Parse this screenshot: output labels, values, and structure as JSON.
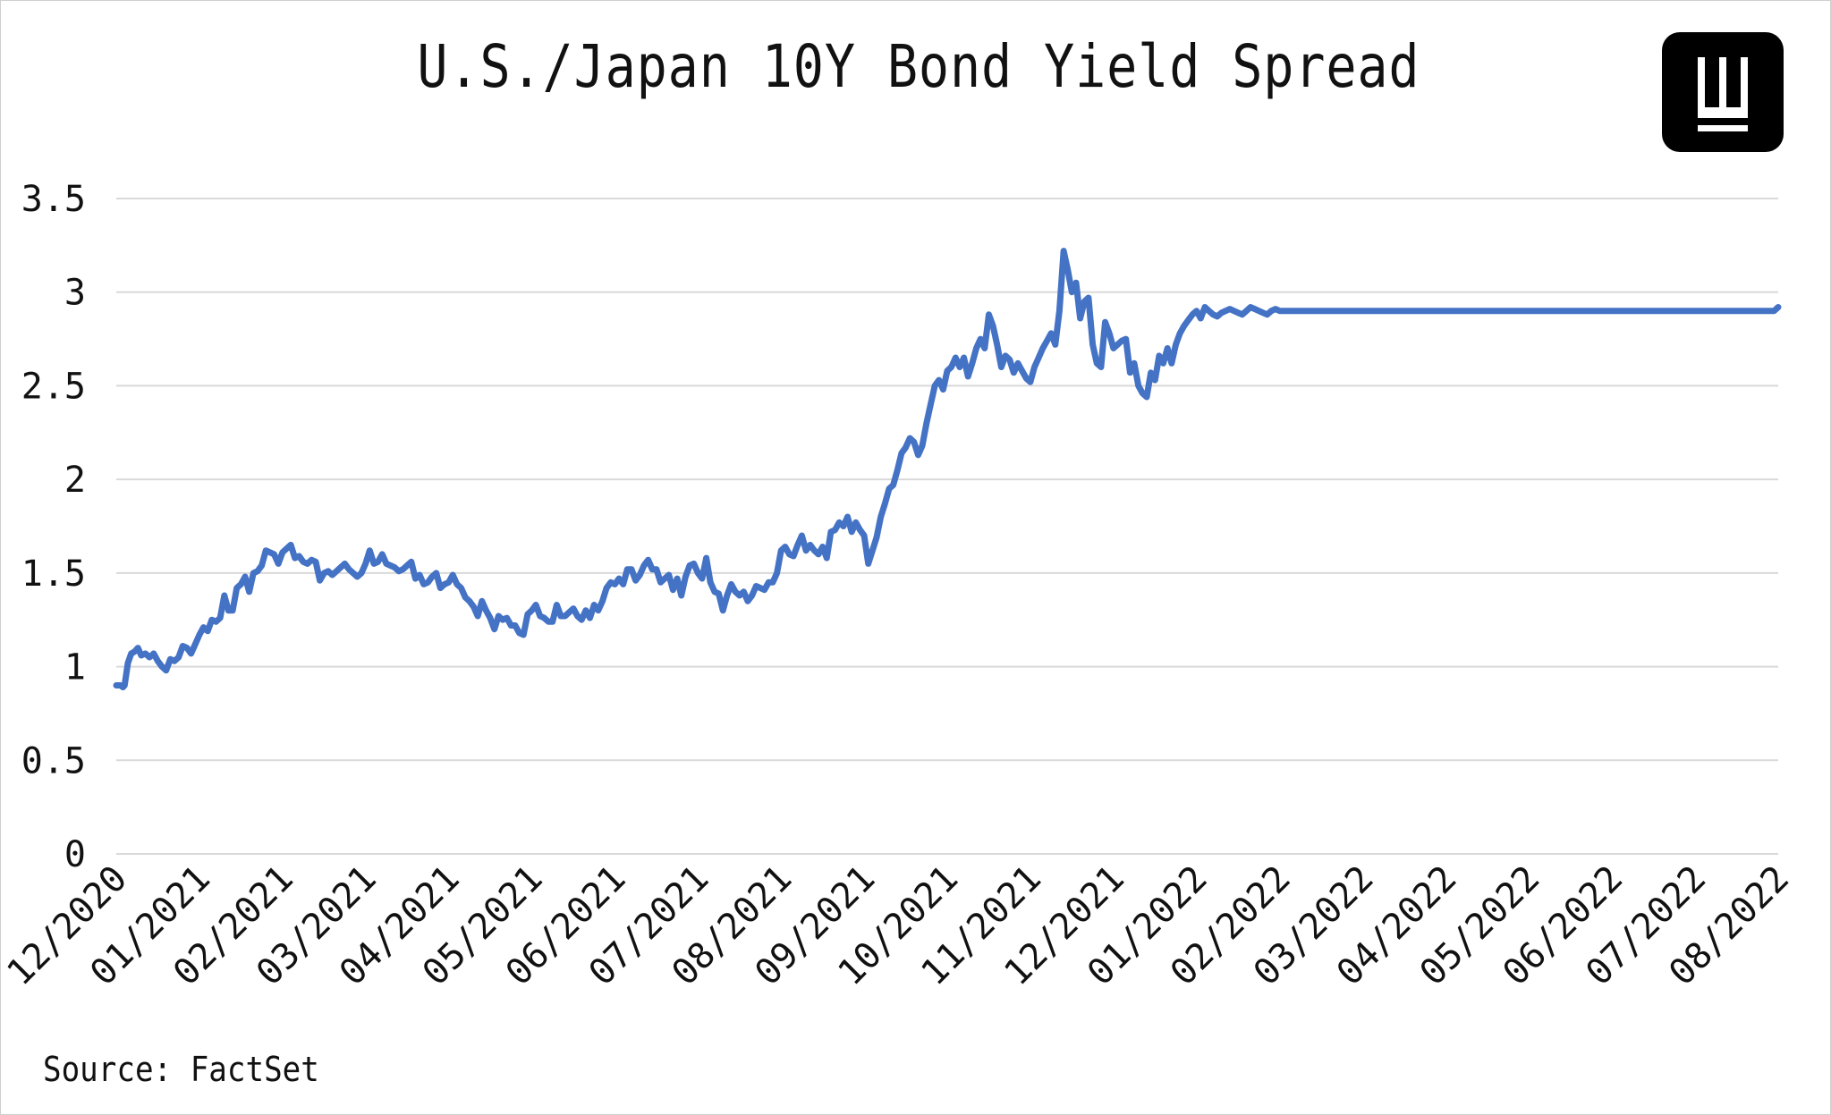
{
  "title": "U.S./Japan 10Y Bond Yield Spread",
  "source": "Source: FactSet",
  "logo": {
    "icon": "w-logo-icon",
    "letter": "W"
  },
  "chart_data": {
    "type": "line",
    "title": "U.S./Japan 10Y Bond Yield Spread",
    "xlabel": "",
    "ylabel": "",
    "ylim": [
      0,
      3.5
    ],
    "yticks": [
      "0",
      "0.5",
      "1",
      "1.5",
      "2",
      "2.5",
      "3",
      "3.5"
    ],
    "ytick_values": [
      0,
      0.5,
      1,
      1.5,
      2,
      2.5,
      3,
      3.5
    ],
    "xticks": [
      "12/2020",
      "01/2021",
      "02/2021",
      "03/2021",
      "04/2021",
      "05/2021",
      "06/2021",
      "07/2021",
      "08/2021",
      "09/2021",
      "10/2021",
      "11/2021",
      "12/2021",
      "01/2022",
      "02/2022",
      "03/2022",
      "04/2022",
      "05/2022",
      "06/2022",
      "07/2022",
      "08/2022"
    ],
    "grid": true,
    "line_color": "#4472C4",
    "series": [
      {
        "x": [
          0,
          0.05,
          0.08,
          0.1,
          0.14,
          0.18,
          0.22,
          0.26,
          0.3,
          0.35,
          0.4,
          0.45,
          0.5,
          0.55,
          0.6,
          0.65,
          0.7,
          0.75,
          0.8,
          0.85,
          0.9,
          0.95,
          1.0,
          1.05,
          1.1,
          1.15,
          1.2,
          1.25,
          1.3,
          1.35,
          1.4,
          1.45,
          1.5,
          1.55,
          1.6,
          1.65,
          1.7,
          1.75,
          1.8,
          1.85,
          1.9,
          1.95,
          2.0,
          2.05,
          2.1,
          2.15,
          2.2,
          2.25,
          2.3,
          2.35,
          2.4,
          2.45,
          2.5,
          2.55,
          2.6,
          2.65,
          2.7,
          2.75,
          2.8,
          2.85,
          2.9,
          2.95,
          3.0,
          3.05,
          3.1,
          3.15,
          3.2,
          3.25,
          3.3,
          3.35,
          3.4,
          3.45,
          3.5,
          3.55,
          3.6,
          3.65,
          3.7,
          3.75,
          3.8,
          3.85,
          3.9,
          3.95,
          4.0,
          4.05,
          4.1,
          4.15,
          4.2,
          4.25,
          4.3,
          4.35,
          4.4,
          4.45,
          4.5,
          4.55,
          4.6,
          4.65,
          4.7,
          4.75,
          4.8,
          4.85,
          4.9,
          4.95,
          5.0,
          5.05,
          5.1,
          5.15,
          5.2,
          5.25,
          5.3,
          5.35,
          5.4,
          5.45,
          5.5,
          5.55,
          5.6,
          5.65,
          5.7,
          5.75,
          5.8,
          5.85,
          5.9,
          5.95,
          6.0,
          6.05,
          6.1,
          6.15,
          6.2,
          6.25,
          6.3,
          6.35,
          6.4,
          6.45,
          6.5,
          6.55,
          6.6,
          6.65,
          6.7,
          6.75,
          6.8,
          6.85,
          6.9,
          6.95,
          7.0,
          7.05,
          7.1,
          7.15,
          7.2,
          7.25,
          7.3,
          7.35,
          7.4,
          7.45,
          7.5,
          7.55,
          7.6,
          7.65,
          7.7,
          7.75,
          7.8,
          7.85,
          7.9,
          7.95,
          8.0,
          8.05,
          8.1,
          8.15,
          8.2,
          8.25,
          8.3,
          8.35,
          8.4,
          8.45,
          8.5,
          8.55,
          8.6,
          8.65,
          8.7,
          8.75,
          8.8,
          8.85,
          8.9,
          8.95,
          9.0,
          9.05,
          9.1,
          9.15,
          9.2,
          9.25,
          9.3,
          9.35,
          9.4,
          9.45,
          9.5,
          9.55,
          9.6,
          9.65,
          9.7,
          9.75,
          9.8,
          9.85,
          9.9,
          9.95,
          10.0,
          10.05,
          10.1,
          10.15,
          10.2,
          10.25,
          10.3,
          10.35,
          10.4,
          10.45,
          10.5,
          10.55,
          10.6,
          10.65,
          10.7,
          10.75,
          10.8,
          10.85,
          10.9,
          10.95,
          11.0,
          11.05,
          11.1,
          11.15,
          11.2,
          11.25,
          11.3,
          11.35,
          11.4,
          11.45,
          11.5,
          11.55,
          11.6,
          11.65,
          11.7,
          11.75,
          11.8,
          11.85,
          11.9,
          11.95,
          12.0,
          12.05,
          12.1,
          12.15,
          12.2,
          12.25,
          12.3,
          12.35,
          12.4,
          12.45,
          12.5,
          12.55,
          12.6,
          12.65,
          12.7,
          12.75,
          12.8,
          12.85,
          12.9,
          12.95,
          13.0,
          13.05,
          13.1,
          13.15,
          13.2,
          13.25,
          13.3,
          13.35,
          13.4,
          13.45,
          13.5,
          13.55,
          13.6,
          13.65,
          13.7,
          13.75,
          13.8,
          13.85,
          13.9,
          13.95,
          14.0,
          14.05,
          14.1,
          14.15,
          14.2,
          14.25,
          14.3,
          14.35,
          14.4,
          14.45,
          14.5,
          14.55,
          14.6,
          14.65,
          14.7,
          14.75,
          14.8,
          14.85,
          14.9,
          14.95,
          15.0,
          15.05,
          15.1,
          15.15,
          15.2,
          15.25,
          15.3,
          15.35,
          15.4,
          15.45,
          15.5,
          15.55,
          15.6,
          15.65,
          15.7,
          15.75,
          15.8,
          15.85,
          15.9,
          15.95,
          16.0,
          16.05,
          16.1,
          16.15,
          16.2,
          16.25,
          16.3,
          16.35,
          16.4,
          16.45,
          16.5,
          16.55,
          16.6,
          16.65,
          16.7,
          16.75,
          16.8,
          16.85,
          16.9,
          16.95,
          17.0,
          17.05,
          17.1,
          17.15,
          17.2,
          17.25,
          17.3,
          17.35,
          17.4,
          17.45,
          17.5,
          17.55,
          17.6,
          17.65,
          17.7,
          17.75,
          17.8,
          17.85,
          17.9,
          17.95,
          18.0,
          18.05,
          18.1,
          18.15,
          18.2,
          18.25,
          18.3,
          18.35,
          18.4,
          18.45,
          18.5,
          18.55,
          18.6,
          18.65,
          18.7,
          18.75,
          18.8,
          18.85,
          18.9,
          18.95,
          19.0,
          19.05,
          19.1,
          19.15,
          19.2,
          19.25,
          19.3,
          19.35,
          19.4,
          19.45,
          19.5,
          19.55,
          19.6,
          19.65,
          19.7,
          19.75,
          19.8,
          19.85,
          19.9,
          19.95,
          20.0
        ],
        "values": [
          0.9,
          0.9,
          0.89,
          0.9,
          1.02,
          1.07,
          1.08,
          1.1,
          1.06,
          1.07,
          1.05,
          1.07,
          1.03,
          1.0,
          0.98,
          1.04,
          1.03,
          1.05,
          1.11,
          1.1,
          1.07,
          1.12,
          1.17,
          1.21,
          1.19,
          1.25,
          1.24,
          1.26,
          1.38,
          1.3,
          1.3,
          1.42,
          1.44,
          1.48,
          1.4,
          1.5,
          1.51,
          1.54,
          1.62,
          1.61,
          1.6,
          1.55,
          1.61,
          1.63,
          1.65,
          1.58,
          1.59,
          1.56,
          1.55,
          1.57,
          1.56,
          1.46,
          1.5,
          1.51,
          1.49,
          1.51,
          1.53,
          1.55,
          1.52,
          1.5,
          1.48,
          1.5,
          1.55,
          1.62,
          1.55,
          1.56,
          1.6,
          1.55,
          1.54,
          1.53,
          1.51,
          1.52,
          1.54,
          1.56,
          1.47,
          1.49,
          1.44,
          1.45,
          1.48,
          1.5,
          1.42,
          1.44,
          1.45,
          1.49,
          1.44,
          1.42,
          1.37,
          1.35,
          1.32,
          1.27,
          1.35,
          1.3,
          1.26,
          1.2,
          1.27,
          1.25,
          1.26,
          1.22,
          1.22,
          1.18,
          1.17,
          1.28,
          1.3,
          1.33,
          1.27,
          1.26,
          1.24,
          1.24,
          1.33,
          1.27,
          1.27,
          1.29,
          1.31,
          1.27,
          1.25,
          1.3,
          1.26,
          1.33,
          1.3,
          1.35,
          1.42,
          1.45,
          1.44,
          1.47,
          1.44,
          1.52,
          1.52,
          1.46,
          1.49,
          1.54,
          1.57,
          1.52,
          1.52,
          1.45,
          1.47,
          1.49,
          1.41,
          1.47,
          1.38,
          1.48,
          1.54,
          1.55,
          1.5,
          1.47,
          1.58,
          1.45,
          1.4,
          1.39,
          1.3,
          1.38,
          1.44,
          1.4,
          1.38,
          1.4,
          1.35,
          1.38,
          1.43,
          1.42,
          1.41,
          1.45,
          1.45,
          1.5,
          1.62,
          1.64,
          1.6,
          1.59,
          1.65,
          1.7,
          1.62,
          1.65,
          1.62,
          1.6,
          1.64,
          1.58,
          1.72,
          1.73,
          1.77,
          1.75,
          1.8,
          1.72,
          1.77,
          1.73,
          1.7,
          1.55,
          1.62,
          1.69,
          1.8,
          1.87,
          1.95,
          1.97,
          2.05,
          2.14,
          2.17,
          2.22,
          2.2,
          2.13,
          2.18,
          2.3,
          2.4,
          2.5,
          2.53,
          2.48,
          2.58,
          2.6,
          2.65,
          2.6,
          2.65,
          2.55,
          2.62,
          2.7,
          2.75,
          2.7,
          2.88,
          2.82,
          2.72,
          2.6,
          2.66,
          2.64,
          2.57,
          2.62,
          2.58,
          2.54,
          2.52,
          2.6,
          2.65,
          2.7,
          2.74,
          2.78,
          2.72,
          2.9,
          3.22,
          3.12,
          3.0,
          3.05,
          2.86,
          2.95,
          2.97,
          2.72,
          2.62,
          2.6,
          2.84,
          2.78,
          2.7,
          2.72,
          2.74,
          2.75,
          2.57,
          2.62,
          2.5,
          2.46,
          2.44,
          2.57,
          2.53,
          2.66,
          2.62,
          2.7,
          2.62,
          2.72,
          2.78,
          2.82,
          2.85,
          2.88,
          2.9,
          2.86,
          2.92,
          2.9,
          2.88,
          2.87,
          2.89,
          2.9,
          2.91,
          2.9,
          2.89,
          2.88,
          2.9,
          2.92,
          2.91,
          2.9,
          2.89,
          2.88,
          2.9,
          2.91,
          2.9,
          2.9,
          2.9,
          2.9,
          2.9,
          2.9,
          2.9,
          2.9,
          2.9,
          2.9,
          2.9,
          2.9,
          2.9,
          2.9,
          2.9,
          2.9,
          2.9,
          2.9,
          2.9,
          2.9,
          2.9,
          2.9,
          2.9,
          2.9,
          2.9,
          2.9,
          2.9,
          2.9,
          2.9,
          2.9,
          2.9,
          2.9,
          2.9,
          2.9,
          2.9,
          2.9,
          2.9,
          2.9,
          2.9,
          2.9,
          2.9,
          2.9,
          2.9,
          2.9,
          2.9,
          2.9,
          2.9,
          2.9,
          2.9,
          2.9,
          2.9,
          2.9,
          2.9,
          2.9,
          2.9,
          2.9,
          2.9,
          2.9,
          2.9,
          2.9,
          2.9,
          2.9,
          2.9,
          2.9,
          2.9,
          2.9,
          2.9,
          2.9,
          2.9,
          2.9,
          2.9,
          2.9,
          2.9,
          2.9,
          2.9,
          2.9,
          2.9,
          2.9,
          2.9,
          2.9,
          2.9,
          2.9,
          2.9,
          2.9,
          2.9,
          2.9,
          2.9,
          2.9,
          2.9,
          2.9,
          2.9,
          2.9,
          2.9,
          2.9,
          2.9,
          2.9,
          2.9,
          2.9,
          2.9,
          2.9,
          2.9,
          2.9,
          2.9,
          2.9,
          2.9,
          2.9,
          2.9,
          2.9,
          2.9,
          2.9,
          2.9,
          2.9,
          2.9,
          2.9,
          2.9,
          2.9,
          2.9,
          2.9,
          2.9,
          2.9,
          2.92
        ]
      }
    ]
  }
}
